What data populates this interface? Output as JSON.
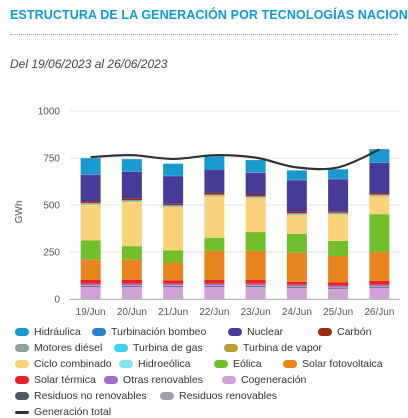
{
  "header": {
    "title": "ESTRUCTURA DE LA GENERACIÓN POR TECNOLOGÍAS NACIONAL",
    "subtitle": "Del 19/06/2023 al 26/06/2023"
  },
  "chart_data": {
    "type": "bar",
    "stacked": true,
    "ylabel": "GWh",
    "ylim": [
      0,
      1000
    ],
    "yticks": [
      0,
      250,
      500,
      750,
      1000
    ],
    "categories": [
      "19/Jun",
      "20/Jun",
      "21/Jun",
      "22/Jun",
      "23/Jun",
      "24/Jun",
      "25/Jun",
      "26/Jun"
    ],
    "series": [
      {
        "name": "Cogeneración",
        "color": "#cfa3d6",
        "values": [
          65,
          65,
          65,
          65,
          65,
          60,
          55,
          60
        ]
      },
      {
        "name": "Residuos no renovables",
        "color": "#4d5a66",
        "values": [
          5,
          5,
          5,
          5,
          5,
          5,
          5,
          5
        ]
      },
      {
        "name": "Residuos renovables",
        "color": "#9aa3ab",
        "values": [
          3,
          3,
          3,
          3,
          3,
          3,
          3,
          3
        ]
      },
      {
        "name": "Otras renovables",
        "color": "#a36bd0",
        "values": [
          8,
          8,
          8,
          8,
          8,
          8,
          8,
          8
        ]
      },
      {
        "name": "Solar térmica",
        "color": "#e8202a",
        "values": [
          20,
          20,
          18,
          20,
          20,
          15,
          18,
          20
        ]
      },
      {
        "name": "Solar fotovoltaica",
        "color": "#e8851f",
        "values": [
          110,
          110,
          95,
          155,
          155,
          155,
          140,
          155
        ]
      },
      {
        "name": "Eólica",
        "color": "#72bf2c",
        "values": [
          100,
          70,
          65,
          70,
          100,
          100,
          80,
          200
        ]
      },
      {
        "name": "Ciclo combinado",
        "color": "#fad27a",
        "values": [
          190,
          235,
          230,
          220,
          180,
          100,
          140,
          95
        ]
      },
      {
        "name": "Turbina de vapor",
        "color": "#b7a02c",
        "values": [
          2,
          2,
          2,
          2,
          2,
          2,
          2,
          2
        ]
      },
      {
        "name": "Hidroeólica",
        "color": "#7fe3f0",
        "values": [
          1,
          1,
          1,
          1,
          1,
          1,
          1,
          1
        ]
      },
      {
        "name": "Turbina de gas",
        "color": "#3dd1ec",
        "values": [
          2,
          2,
          2,
          2,
          2,
          2,
          2,
          2
        ]
      },
      {
        "name": "Motores diésel",
        "color": "#8ea0a0",
        "values": [
          5,
          5,
          5,
          5,
          5,
          5,
          5,
          5
        ]
      },
      {
        "name": "Carbón",
        "color": "#9c2a10",
        "values": [
          10,
          10,
          8,
          10,
          10,
          10,
          8,
          8
        ]
      },
      {
        "name": "Nuclear",
        "color": "#463c98",
        "values": [
          140,
          140,
          145,
          120,
          115,
          165,
          170,
          160
        ]
      },
      {
        "name": "Turbinación bombeo",
        "color": "#2f7fd4",
        "values": [
          3,
          3,
          3,
          3,
          3,
          3,
          3,
          3
        ]
      },
      {
        "name": "Hidráulica",
        "color": "#1a98d0",
        "values": [
          85,
          65,
          65,
          70,
          65,
          50,
          50,
          70
        ]
      }
    ],
    "line": {
      "name": "Generación total",
      "color": "#333333",
      "values": [
        755,
        765,
        745,
        765,
        752,
        700,
        700,
        795
      ]
    },
    "legend": {
      "position": "bottom",
      "items": [
        {
          "name": "Hidráulica",
          "color": "#1a98d0",
          "kind": "swatch"
        },
        {
          "name": "Turbinación bombeo",
          "color": "#2f7fd4",
          "kind": "swatch"
        },
        {
          "name": "Nuclear",
          "color": "#463c98",
          "kind": "swatch"
        },
        {
          "name": "Carbón",
          "color": "#9c2a10",
          "kind": "swatch"
        },
        {
          "name": "Motores diésel",
          "color": "#8ea0a0",
          "kind": "swatch"
        },
        {
          "name": "Turbina de gas",
          "color": "#3dd1ec",
          "kind": "swatch"
        },
        {
          "name": "Turbina de vapor",
          "color": "#b7a02c",
          "kind": "swatch"
        },
        {
          "name": "Ciclo combinado",
          "color": "#fad27a",
          "kind": "swatch"
        },
        {
          "name": "Hidroeólica",
          "color": "#7fe3f0",
          "kind": "swatch"
        },
        {
          "name": "Eólica",
          "color": "#72bf2c",
          "kind": "swatch"
        },
        {
          "name": "Solar fotovoltaica",
          "color": "#e8851f",
          "kind": "swatch"
        },
        {
          "name": "Solar térmica",
          "color": "#e8202a",
          "kind": "swatch"
        },
        {
          "name": "Otras renovables",
          "color": "#a36bd0",
          "kind": "swatch"
        },
        {
          "name": "Cogeneración",
          "color": "#cfa3d6",
          "kind": "swatch"
        },
        {
          "name": "Residuos no renovables",
          "color": "#4d5a66",
          "kind": "swatch"
        },
        {
          "name": "Residuos renovables",
          "color": "#9aa3ab",
          "kind": "swatch"
        },
        {
          "name": "Generación total",
          "color": "#333333",
          "kind": "line"
        }
      ]
    }
  }
}
